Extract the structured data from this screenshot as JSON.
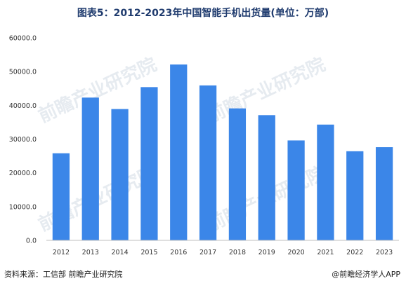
{
  "title": "图表5：2012-2023年中国智能手机出货量(单位：万部)",
  "source": "资料来源：工信部 前瞻产业研究院",
  "brand": "@前瞻经济学人APP",
  "watermark": "前瞻产业研究院",
  "colors": {
    "bar": "#3b86e8",
    "axis": "#bfbfbf",
    "title": "#1f3b6e"
  },
  "chart_data": {
    "type": "bar",
    "title": "图表5：2012-2023年中国智能手机出货量(单位：万部)",
    "xlabel": "",
    "ylabel": "",
    "categories": [
      "2012",
      "2013",
      "2014",
      "2015",
      "2016",
      "2017",
      "2018",
      "2019",
      "2020",
      "2021",
      "2022",
      "2023"
    ],
    "values": [
      25800,
      42300,
      38900,
      45400,
      52100,
      45900,
      39100,
      37100,
      29600,
      34300,
      26400,
      27600
    ],
    "ylim": [
      0,
      60000
    ],
    "yticks": [
      "0.0",
      "10000.0",
      "20000.0",
      "30000.0",
      "40000.0",
      "50000.0",
      "60000.0"
    ],
    "ytick_values": [
      0,
      10000,
      20000,
      30000,
      40000,
      50000,
      60000
    ],
    "grid": false,
    "legend": "none"
  }
}
